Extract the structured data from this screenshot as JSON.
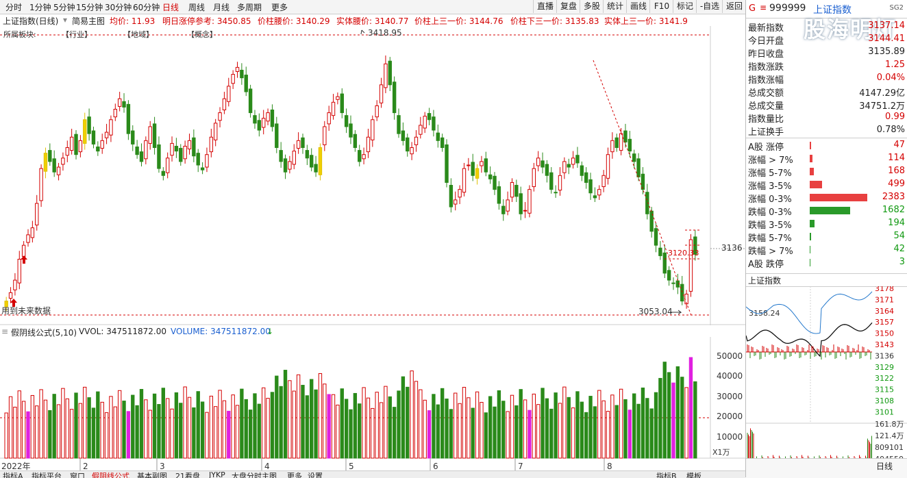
{
  "toolbar": {
    "timeframes": [
      "分时",
      "1分钟",
      "5分钟",
      "15分钟",
      "30分钟",
      "60分钟",
      "日线",
      "周线",
      "月线",
      "多周期",
      "更多"
    ],
    "active_timeframe": "日线",
    "right_buttons": [
      "直播",
      "复盘",
      "多股",
      "统计",
      "画线",
      "F10",
      "标记",
      "-自选",
      "返回"
    ]
  },
  "info": {
    "title": "上证指数(日线)",
    "chart_type": "简易主图",
    "avg": "均价: 11.93",
    "limit_ref": "明日涨停参考: 3450.85",
    "waist": "价柱腰价: 3140.29",
    "body_waist": "实体腰价: 3140.77",
    "upper_third": "价柱上三一价: 3144.76",
    "lower_third": "价柱下三一价: 3135.83",
    "body_upper_third": "实体上三一价: 3141.9"
  },
  "sectors": {
    "label": "所属板块:",
    "industry": "【行业】",
    "region": "【地域】",
    "concept": "【概念】"
  },
  "annotations": {
    "high": "3418.95",
    "low": "3053.04",
    "mid": "3120.33",
    "right_axis": "3136",
    "future_data": "用到未来数据"
  },
  "x_axis": {
    "year_label": "2022年",
    "months": [
      "2",
      "3",
      "4",
      "5",
      "6",
      "7",
      "8"
    ]
  },
  "volume": {
    "formula": "假阴线公式(5,10)",
    "vvol": "VVOL: 347511872.00",
    "volume": "VOLUME: 347511872.00",
    "unit": "X1万",
    "ticks": [
      "50000",
      "40000",
      "30000",
      "20000",
      "10000"
    ]
  },
  "bottom_tabs": [
    "指标A",
    "指标平台",
    "窗口",
    "假阴线公式",
    "基本副图",
    "21看盘",
    "JYKP",
    "大盘分时主图",
    "更多",
    "设置",
    "指标B",
    "模板"
  ],
  "right_panel": {
    "code": "999999",
    "name": "上证指数",
    "badge": "SG2",
    "watermark": "股海明灯",
    "stats": [
      {
        "label": "最新指数",
        "value": "3137.14",
        "color": "#d40000"
      },
      {
        "label": "今日开盘",
        "value": "3144.41",
        "color": "#d40000"
      },
      {
        "label": "昨日收盘",
        "value": "3135.89",
        "color": "#222222"
      },
      {
        "label": "指数涨跌",
        "value": "1.25",
        "color": "#d40000"
      },
      {
        "label": "指数涨幅",
        "value": "0.04%",
        "color": "#d40000"
      },
      {
        "label": "总成交额",
        "value": "4147.29亿",
        "color": "#222222"
      },
      {
        "label": "总成交量",
        "value": "34751.2万",
        "color": "#222222"
      },
      {
        "label": "指数量比",
        "value": "0.99",
        "color": "#d40000"
      },
      {
        "label": "上证换手",
        "value": "0.78%",
        "color": "#222222"
      }
    ],
    "breadth": [
      {
        "label": "A股 涨停",
        "value": "47",
        "type": "up",
        "count": 47
      },
      {
        "label": "涨幅 > 7%",
        "value": "114",
        "type": "up",
        "count": 114
      },
      {
        "label": "涨幅 5-7%",
        "value": "168",
        "type": "up",
        "count": 168
      },
      {
        "label": "涨幅 3-5%",
        "value": "499",
        "type": "up",
        "count": 499
      },
      {
        "label": "涨幅 0-3%",
        "value": "2383",
        "type": "up",
        "count": 2383
      },
      {
        "label": "跌幅 0-3%",
        "value": "1682",
        "type": "down",
        "count": 1682
      },
      {
        "label": "跌幅 3-5%",
        "value": "194",
        "type": "down",
        "count": 194
      },
      {
        "label": "跌幅 5-7%",
        "value": "54",
        "type": "down",
        "count": 54
      },
      {
        "label": "跌幅 > 7%",
        "value": "42",
        "type": "down",
        "count": 42
      },
      {
        "label": "A股 跌停",
        "value": "3",
        "type": "down",
        "count": 3
      }
    ],
    "intraday_title": "上证指数",
    "intraday_ticks": [
      "3178",
      "3171",
      "3164",
      "3157",
      "3150",
      "3143",
      "3136",
      "3129",
      "3122",
      "3115",
      "3108",
      "3101"
    ],
    "intraday_mark": "3158.24",
    "volume_ticks": [
      "161.8万",
      "121.4万",
      "809101",
      "404550"
    ],
    "tab": "日线"
  },
  "chart_data": {
    "type": "candlestick",
    "ylim": [
      3050,
      3425
    ],
    "closes": [
      3070,
      3082,
      3100,
      3130,
      3150,
      3165,
      3175,
      3210,
      3260,
      3282,
      3270,
      3255,
      3262,
      3275,
      3290,
      3305,
      3280,
      3300,
      3330,
      3310,
      3295,
      3285,
      3300,
      3312,
      3330,
      3345,
      3360,
      3348,
      3310,
      3295,
      3280,
      3270,
      3300,
      3320,
      3290,
      3260,
      3250,
      3275,
      3296,
      3285,
      3270,
      3292,
      3300,
      3278,
      3265,
      3258,
      3280,
      3305,
      3325,
      3340,
      3360,
      3378,
      3395,
      3405,
      3390,
      3370,
      3340,
      3325,
      3315,
      3332,
      3340,
      3320,
      3290,
      3270,
      3255,
      3270,
      3285,
      3300,
      3290,
      3275,
      3262,
      3255,
      3290,
      3320,
      3340,
      3355,
      3363,
      3340,
      3320,
      3305,
      3290,
      3270,
      3280,
      3305,
      3330,
      3350,
      3380,
      3410,
      3380,
      3340,
      3310,
      3300,
      3285,
      3290,
      3305,
      3322,
      3335,
      3330,
      3315,
      3300,
      3290,
      3240,
      3205,
      3215,
      3230,
      3260,
      3265,
      3250,
      3260,
      3270,
      3255,
      3245,
      3230,
      3210,
      3195,
      3215,
      3240,
      3220,
      3195,
      3200,
      3230,
      3260,
      3275,
      3262,
      3250,
      3230,
      3225,
      3250,
      3270,
      3262,
      3275,
      3268,
      3250,
      3240,
      3225,
      3218,
      3230,
      3250,
      3280,
      3300,
      3290,
      3310,
      3298,
      3285,
      3270,
      3248,
      3230,
      3195,
      3170,
      3150,
      3135,
      3110,
      3100,
      3095,
      3090,
      3070,
      3080,
      3158,
      3137
    ]
  }
}
